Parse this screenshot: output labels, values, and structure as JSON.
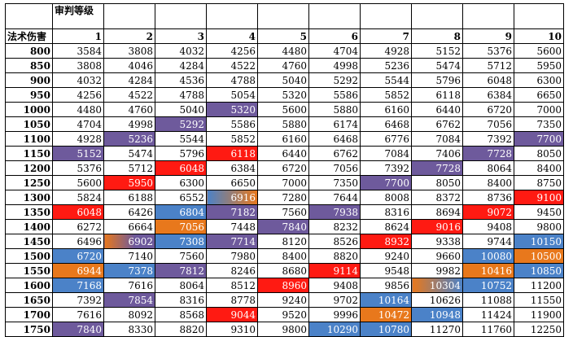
{
  "sheet": {
    "corner_top": "审判等级",
    "corner_left": "法术伤害",
    "levels": [
      "1",
      "2",
      "3",
      "4",
      "5",
      "6",
      "7",
      "8",
      "9",
      "10"
    ],
    "rows": [
      {
        "label": "800",
        "cells": [
          {
            "v": "3584"
          },
          {
            "v": "3808"
          },
          {
            "v": "4032"
          },
          {
            "v": "4256"
          },
          {
            "v": "4480"
          },
          {
            "v": "4704"
          },
          {
            "v": "4928"
          },
          {
            "v": "5152"
          },
          {
            "v": "5376"
          },
          {
            "v": "5600"
          }
        ]
      },
      {
        "label": "850",
        "cells": [
          {
            "v": "3808"
          },
          {
            "v": "4046"
          },
          {
            "v": "4284"
          },
          {
            "v": "4522"
          },
          {
            "v": "4760"
          },
          {
            "v": "4998"
          },
          {
            "v": "5236"
          },
          {
            "v": "5474"
          },
          {
            "v": "5712"
          },
          {
            "v": "5950"
          }
        ]
      },
      {
        "label": "900",
        "cells": [
          {
            "v": "4032"
          },
          {
            "v": "4284"
          },
          {
            "v": "4536"
          },
          {
            "v": "4788"
          },
          {
            "v": "5040"
          },
          {
            "v": "5292"
          },
          {
            "v": "5544"
          },
          {
            "v": "5796"
          },
          {
            "v": "6048"
          },
          {
            "v": "6300"
          }
        ]
      },
      {
        "label": "950",
        "cells": [
          {
            "v": "4256"
          },
          {
            "v": "4522"
          },
          {
            "v": "4788"
          },
          {
            "v": "5054"
          },
          {
            "v": "5320"
          },
          {
            "v": "5586"
          },
          {
            "v": "5852"
          },
          {
            "v": "6118"
          },
          {
            "v": "6384"
          },
          {
            "v": "6650"
          }
        ]
      },
      {
        "label": "1000",
        "cells": [
          {
            "v": "4480"
          },
          {
            "v": "4760"
          },
          {
            "v": "5040"
          },
          {
            "v": "5320",
            "c": "purple"
          },
          {
            "v": "5600"
          },
          {
            "v": "5880"
          },
          {
            "v": "6160"
          },
          {
            "v": "6440"
          },
          {
            "v": "6720"
          },
          {
            "v": "7000"
          }
        ]
      },
      {
        "label": "1050",
        "cells": [
          {
            "v": "4704"
          },
          {
            "v": "4998"
          },
          {
            "v": "5292",
            "c": "purple"
          },
          {
            "v": "5586"
          },
          {
            "v": "5880"
          },
          {
            "v": "6174"
          },
          {
            "v": "6468"
          },
          {
            "v": "6762"
          },
          {
            "v": "7056"
          },
          {
            "v": "7350"
          }
        ]
      },
      {
        "label": "1100",
        "cells": [
          {
            "v": "4928"
          },
          {
            "v": "5236",
            "c": "purple"
          },
          {
            "v": "5544"
          },
          {
            "v": "5852"
          },
          {
            "v": "6160"
          },
          {
            "v": "6468"
          },
          {
            "v": "6776"
          },
          {
            "v": "7084"
          },
          {
            "v": "7392"
          },
          {
            "v": "7700",
            "c": "purple"
          }
        ]
      },
      {
        "label": "1150",
        "cells": [
          {
            "v": "5152",
            "c": "purple"
          },
          {
            "v": "5474"
          },
          {
            "v": "5796"
          },
          {
            "v": "6118",
            "c": "red"
          },
          {
            "v": "6440"
          },
          {
            "v": "6762"
          },
          {
            "v": "7084"
          },
          {
            "v": "7406"
          },
          {
            "v": "7728",
            "c": "purple"
          },
          {
            "v": "8050"
          }
        ]
      },
      {
        "label": "1200",
        "cells": [
          {
            "v": "5376"
          },
          {
            "v": "5712"
          },
          {
            "v": "6048",
            "c": "red"
          },
          {
            "v": "6384"
          },
          {
            "v": "6720"
          },
          {
            "v": "7056"
          },
          {
            "v": "7392"
          },
          {
            "v": "7728",
            "c": "purple"
          },
          {
            "v": "8064"
          },
          {
            "v": "8400"
          }
        ]
      },
      {
        "label": "1250",
        "cells": [
          {
            "v": "5600"
          },
          {
            "v": "5950",
            "c": "red"
          },
          {
            "v": "6300"
          },
          {
            "v": "6650"
          },
          {
            "v": "7000"
          },
          {
            "v": "7350"
          },
          {
            "v": "7700",
            "c": "purple"
          },
          {
            "v": "8050"
          },
          {
            "v": "8400"
          },
          {
            "v": "8750"
          }
        ]
      },
      {
        "label": "1300",
        "cells": [
          {
            "v": "5824"
          },
          {
            "v": "6188"
          },
          {
            "v": "6552"
          },
          {
            "v": "6916",
            "c": "blue-orange"
          },
          {
            "v": "7280"
          },
          {
            "v": "7644"
          },
          {
            "v": "8008"
          },
          {
            "v": "8372"
          },
          {
            "v": "8736"
          },
          {
            "v": "9100",
            "c": "red"
          }
        ]
      },
      {
        "label": "1350",
        "cells": [
          {
            "v": "6048",
            "c": "red"
          },
          {
            "v": "6426"
          },
          {
            "v": "6804",
            "c": "blue"
          },
          {
            "v": "7182",
            "c": "purple"
          },
          {
            "v": "7560"
          },
          {
            "v": "7938",
            "c": "purple"
          },
          {
            "v": "8316"
          },
          {
            "v": "8694"
          },
          {
            "v": "9072",
            "c": "red"
          },
          {
            "v": "9450"
          }
        ]
      },
      {
        "label": "1400",
        "cells": [
          {
            "v": "6272"
          },
          {
            "v": "6664"
          },
          {
            "v": "7056",
            "c": "orange"
          },
          {
            "v": "7448"
          },
          {
            "v": "7840",
            "c": "purple"
          },
          {
            "v": "8232"
          },
          {
            "v": "8624"
          },
          {
            "v": "9016",
            "c": "red"
          },
          {
            "v": "9408"
          },
          {
            "v": "9800"
          }
        ]
      },
      {
        "label": "1450",
        "cells": [
          {
            "v": "6496"
          },
          {
            "v": "6902",
            "c": "purple-orange"
          },
          {
            "v": "7308",
            "c": "blue"
          },
          {
            "v": "7714",
            "c": "purple"
          },
          {
            "v": "8120"
          },
          {
            "v": "8526"
          },
          {
            "v": "8932",
            "c": "red"
          },
          {
            "v": "9338"
          },
          {
            "v": "9744"
          },
          {
            "v": "10150",
            "c": "blue"
          }
        ]
      },
      {
        "label": "1500",
        "cells": [
          {
            "v": "6720",
            "c": "blue"
          },
          {
            "v": "7140"
          },
          {
            "v": "7560"
          },
          {
            "v": "7980"
          },
          {
            "v": "8400"
          },
          {
            "v": "8820"
          },
          {
            "v": "9240"
          },
          {
            "v": "9660"
          },
          {
            "v": "10080",
            "c": "blue"
          },
          {
            "v": "10500",
            "c": "orange"
          }
        ]
      },
      {
        "label": "1550",
        "cells": [
          {
            "v": "6944",
            "c": "orange"
          },
          {
            "v": "7378",
            "c": "blue"
          },
          {
            "v": "7812",
            "c": "purple"
          },
          {
            "v": "8246"
          },
          {
            "v": "8680"
          },
          {
            "v": "9114",
            "c": "red"
          },
          {
            "v": "9548"
          },
          {
            "v": "9982"
          },
          {
            "v": "10416",
            "c": "orange"
          },
          {
            "v": "10850",
            "c": "blue"
          }
        ]
      },
      {
        "label": "1600",
        "cells": [
          {
            "v": "7168",
            "c": "blue"
          },
          {
            "v": "7616"
          },
          {
            "v": "8064"
          },
          {
            "v": "8512"
          },
          {
            "v": "8960",
            "c": "red"
          },
          {
            "v": "9408"
          },
          {
            "v": "9856"
          },
          {
            "v": "10304",
            "c": "orange-blue"
          },
          {
            "v": "10752",
            "c": "blue"
          },
          {
            "v": "11200"
          }
        ]
      },
      {
        "label": "1650",
        "cells": [
          {
            "v": "7392"
          },
          {
            "v": "7854",
            "c": "purple"
          },
          {
            "v": "8316"
          },
          {
            "v": "8778"
          },
          {
            "v": "9240"
          },
          {
            "v": "9702"
          },
          {
            "v": "10164",
            "c": "blue"
          },
          {
            "v": "10626"
          },
          {
            "v": "11088"
          },
          {
            "v": "11550"
          }
        ]
      },
      {
        "label": "1700",
        "cells": [
          {
            "v": "7616"
          },
          {
            "v": "8092"
          },
          {
            "v": "8568"
          },
          {
            "v": "9044",
            "c": "red"
          },
          {
            "v": "9520"
          },
          {
            "v": "9996"
          },
          {
            "v": "10472",
            "c": "orange"
          },
          {
            "v": "10948",
            "c": "blue"
          },
          {
            "v": "11424"
          },
          {
            "v": "11900"
          }
        ]
      },
      {
        "label": "1750",
        "cells": [
          {
            "v": "7840",
            "c": "purple"
          },
          {
            "v": "8330"
          },
          {
            "v": "8820"
          },
          {
            "v": "9310"
          },
          {
            "v": "9800"
          },
          {
            "v": "10290",
            "c": "blue"
          },
          {
            "v": "10780",
            "c": "blue"
          },
          {
            "v": "11270"
          },
          {
            "v": "11760"
          },
          {
            "v": "12250"
          }
        ]
      }
    ],
    "colors": {
      "purple": "#6e5a9c",
      "red": "#ff1a12",
      "blue": "#4b82c8",
      "orange": "#e8781c"
    }
  }
}
